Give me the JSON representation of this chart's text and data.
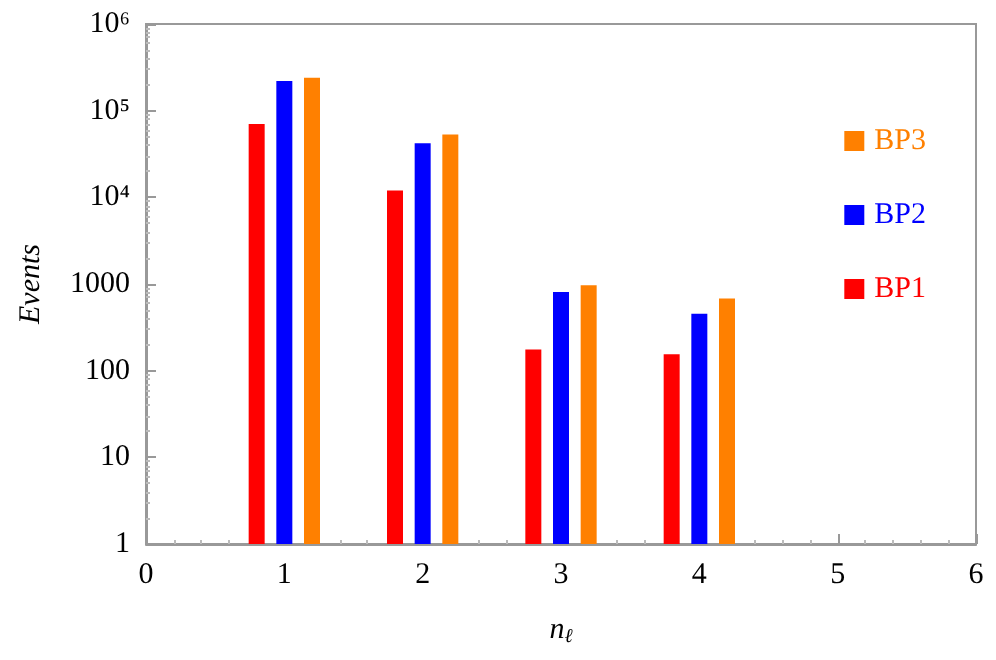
{
  "chart_data": {
    "type": "bar",
    "xlabel": "n$_{ℓ}$",
    "ylabel": "Events",
    "log": "y",
    "grid": false,
    "legend": "right",
    "xlim": [
      0,
      6
    ],
    "xticks": [
      0,
      1,
      2,
      3,
      4,
      5,
      6
    ],
    "ylim": [
      1,
      1000000
    ],
    "yticks": [
      1,
      10,
      100,
      1000,
      {
        "value": 10000,
        "label": "10⁴"
      },
      {
        "value": 100000,
        "label": "10⁵"
      },
      {
        "value": 1000000,
        "label": "10⁶"
      }
    ],
    "series": [
      {
        "name": "BP1",
        "color": "#ff0000",
        "x": [
          0.8,
          1.8,
          2.8,
          3.8
        ],
        "values": [
          70000,
          12000,
          175,
          155
        ]
      },
      {
        "name": "BP2",
        "color": "#0000ff",
        "x": [
          1,
          2,
          3,
          4
        ],
        "values": [
          220000,
          42000,
          810,
          455
        ]
      },
      {
        "name": "BP3",
        "color": "#ff8000",
        "x": [
          1.2,
          2.2,
          3.2,
          4.2
        ],
        "values": [
          240000,
          53000,
          970,
          680
        ]
      }
    ]
  }
}
